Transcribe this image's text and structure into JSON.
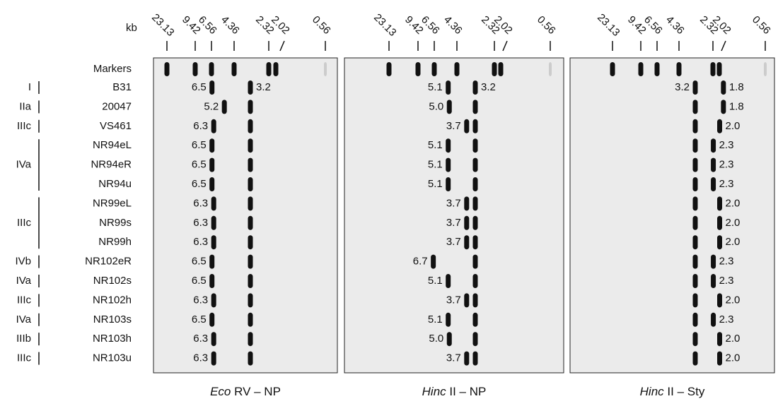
{
  "axis_unit": "kb",
  "markers": [
    "23.13",
    "9.42",
    "6.56",
    "4.36",
    "2.32",
    "2.02",
    "0.56"
  ],
  "marker_row_label": "Markers",
  "rows": [
    "B31",
    "20047",
    "VS461",
    "NR94eL",
    "NR94eR",
    "NR94u",
    "NR99eL",
    "NR99s",
    "NR99h",
    "NR102eR",
    "NR102s",
    "NR102h",
    "NR103s",
    "NR103h",
    "NR103u"
  ],
  "groups": [
    "I",
    "IIa",
    "IIIc",
    "IVa",
    "IIIc",
    "IVb",
    "IVa",
    "IIIc",
    "IVa",
    "IIIb",
    "IIIc"
  ],
  "panels": [
    {
      "title_italic": "Eco",
      "title": "RV – NP",
      "constant_band_label": "3.2",
      "bands": [
        "6.5",
        "5.2",
        "6.3",
        "6.5",
        "6.5",
        "6.5",
        "6.3",
        "6.3",
        "6.3",
        "6.5",
        "6.5",
        "6.3",
        "6.5",
        "6.3",
        "6.3"
      ]
    },
    {
      "title_italic": "Hinc",
      "title": "II – NP",
      "constant_band_label": "3.2",
      "bands": [
        "5.1",
        "5.0",
        "3.7",
        "5.1",
        "5.1",
        "5.1",
        "3.7",
        "3.7",
        "3.7",
        "6.7",
        "5.1",
        "3.7",
        "5.1",
        "5.0",
        "3.7"
      ]
    },
    {
      "title_italic": "Hinc",
      "title": "II – Sty",
      "constant_band_label": "3.2",
      "bands": [
        "1.8",
        "1.8",
        "2.0",
        "2.3",
        "2.3",
        "2.3",
        "2.0",
        "2.0",
        "2.0",
        "2.3",
        "2.3",
        "2.0",
        "2.3",
        "2.0",
        "2.0"
      ]
    }
  ]
}
